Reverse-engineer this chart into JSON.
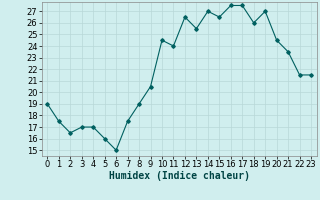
{
  "x": [
    0,
    1,
    2,
    3,
    4,
    5,
    6,
    7,
    8,
    9,
    10,
    11,
    12,
    13,
    14,
    15,
    16,
    17,
    18,
    19,
    20,
    21,
    22,
    23
  ],
  "y": [
    19,
    17.5,
    16.5,
    17,
    17,
    16,
    15,
    17.5,
    19,
    20.5,
    24.5,
    24,
    26.5,
    25.5,
    27,
    26.5,
    27.5,
    27.5,
    26,
    27,
    24.5,
    23.5,
    21.5,
    21.5
  ],
  "line_color": "#006060",
  "marker_color": "#006060",
  "bg_color": "#d0eeee",
  "grid_color": "#b8d8d8",
  "xlabel": "Humidex (Indice chaleur)",
  "yticks": [
    15,
    16,
    17,
    18,
    19,
    20,
    21,
    22,
    23,
    24,
    25,
    26,
    27
  ],
  "xticks": [
    0,
    1,
    2,
    3,
    4,
    5,
    6,
    7,
    8,
    9,
    10,
    11,
    12,
    13,
    14,
    15,
    16,
    17,
    18,
    19,
    20,
    21,
    22,
    23
  ],
  "tick_fontsize": 6,
  "xlabel_fontsize": 7
}
